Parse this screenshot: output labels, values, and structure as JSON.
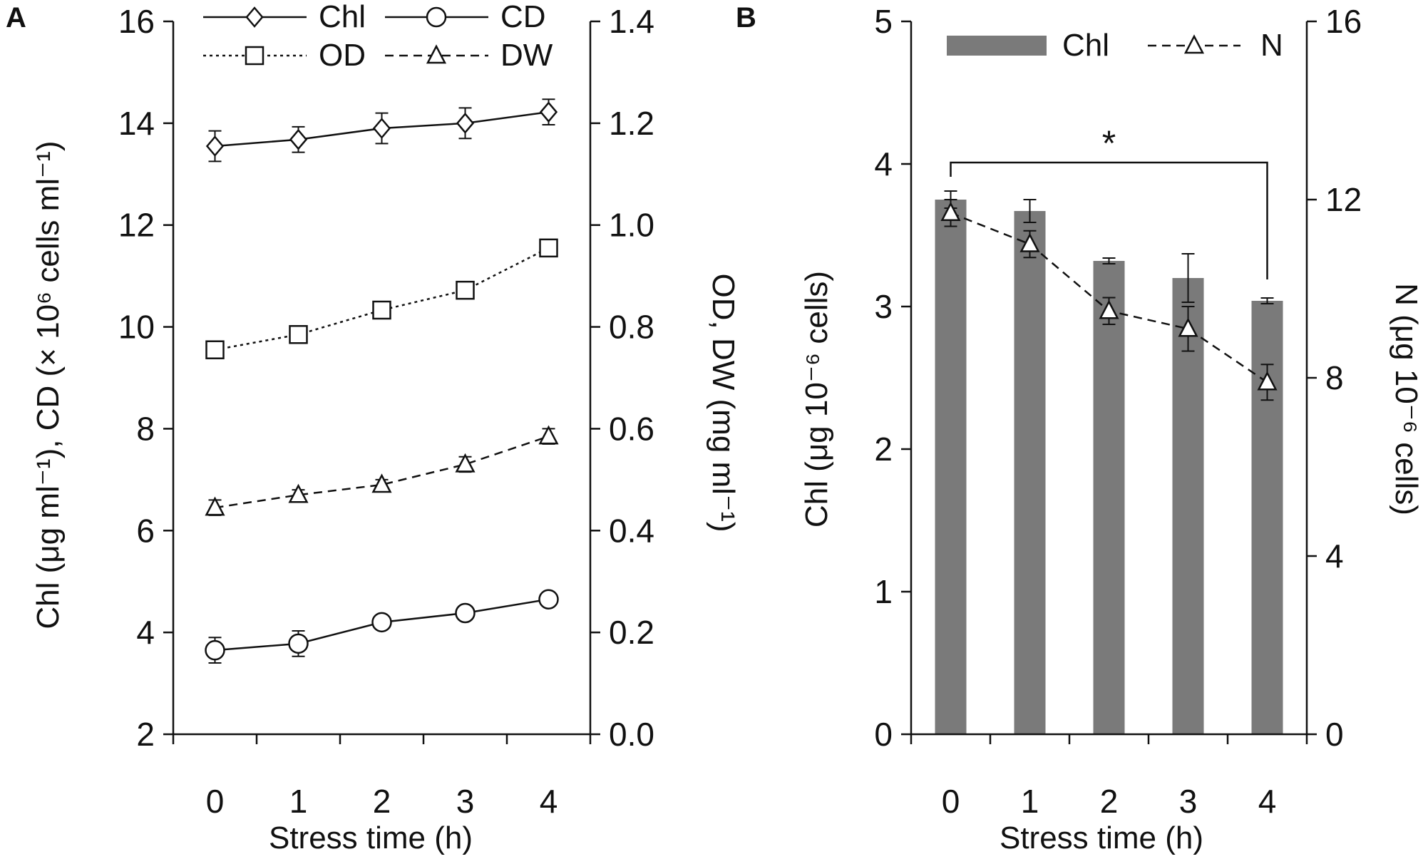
{
  "colors": {
    "axis": "#111111",
    "bar": "#7a7a7a",
    "marker_fill": "#ffffff"
  },
  "panel_a": {
    "label": "A",
    "chart_data": {
      "type": "line",
      "x": [
        0,
        1,
        2,
        3,
        4
      ],
      "x_tick_labels": [
        "0",
        "1",
        "2",
        "3",
        "4"
      ],
      "xlabel": "Stress time (h)",
      "ylabel_left": "Chl (μg ml⁻¹), CD (× 10⁶ cells ml⁻¹)",
      "ylabel_right": "OD, DW (mg ml⁻¹)",
      "ylim_left": [
        2,
        16
      ],
      "ylim_right": [
        0.0,
        1.4
      ],
      "y_ticks_left": [
        "2",
        "4",
        "6",
        "8",
        "10",
        "12",
        "14",
        "16"
      ],
      "y_ticks_right": [
        "0.0",
        "0.2",
        "0.4",
        "0.6",
        "0.8",
        "1.0",
        "1.2",
        "1.4"
      ],
      "legend_position": "top",
      "series": [
        {
          "name": "Chl",
          "axis": "left",
          "marker": "diamond",
          "line": "solid",
          "values": [
            13.55,
            13.68,
            13.9,
            14.0,
            14.22
          ],
          "errors": [
            0.3,
            0.25,
            0.3,
            0.3,
            0.25
          ]
        },
        {
          "name": "CD",
          "axis": "left",
          "marker": "circle",
          "line": "solid",
          "values": [
            3.65,
            3.78,
            4.2,
            4.38,
            4.65
          ],
          "errors": [
            0.25,
            0.25,
            0.05,
            0.1,
            0.05
          ]
        },
        {
          "name": "OD",
          "axis": "right",
          "marker": "square",
          "line": "dotted",
          "values": [
            0.755,
            0.785,
            0.833,
            0.872,
            0.955
          ],
          "errors": [
            0,
            0,
            0,
            0,
            0
          ]
        },
        {
          "name": "DW",
          "axis": "right",
          "marker": "triangle",
          "line": "dashed",
          "values": [
            0.445,
            0.47,
            0.49,
            0.53,
            0.585
          ],
          "errors": [
            0.015,
            0.01,
            0.01,
            0.015,
            0.015
          ]
        }
      ]
    }
  },
  "panel_b": {
    "label": "B",
    "chart_data": {
      "type": "bar",
      "categories": [
        "0",
        "1",
        "2",
        "3",
        "4"
      ],
      "xlabel": "Stress time (h)",
      "ylabel_left": "Chl (μg 10⁻⁶ cells)",
      "ylabel_right": "N (μg 10⁻⁶ cells)",
      "ylim_left": [
        0,
        5
      ],
      "ylim_right": [
        0,
        16
      ],
      "y_ticks_left": [
        "0",
        "1",
        "2",
        "3",
        "4",
        "5"
      ],
      "y_ticks_right": [
        "0",
        "4",
        "8",
        "12",
        "16"
      ],
      "legend_position": "top",
      "series": [
        {
          "name": "Chl",
          "axis": "left",
          "kind": "bar",
          "values": [
            3.75,
            3.67,
            3.32,
            3.2,
            3.04
          ],
          "errors": [
            0.06,
            0.08,
            0.02,
            0.17,
            0.02
          ]
        },
        {
          "name": "N",
          "axis": "right",
          "kind": "line",
          "marker": "triangle",
          "line": "dashed",
          "values": [
            11.7,
            11.0,
            9.5,
            9.1,
            7.9
          ],
          "errors": [
            0.3,
            0.3,
            0.3,
            0.5,
            0.4
          ]
        }
      ],
      "annotation": {
        "text": "*",
        "from": "0",
        "to": "4"
      }
    }
  }
}
